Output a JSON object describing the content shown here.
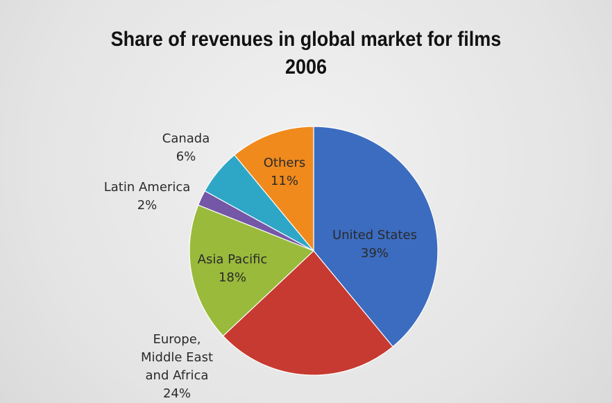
{
  "chart_data": {
    "type": "pie",
    "title": [
      "Share of revenues in global market for films",
      "2006"
    ],
    "categories": [
      "United States",
      "Europe, Middle East and Africa",
      "Asia Pacific",
      "Latin America",
      "Canada",
      "Others"
    ],
    "values": [
      39,
      24,
      18,
      2,
      6,
      11
    ],
    "value_labels": [
      "39%",
      "24%",
      "18%",
      "2%",
      "6%",
      "11%"
    ],
    "colors": [
      "#3b6cc0",
      "#c63a31",
      "#9aba3c",
      "#7457a6",
      "#2ea6c6",
      "#f08a1d"
    ]
  }
}
